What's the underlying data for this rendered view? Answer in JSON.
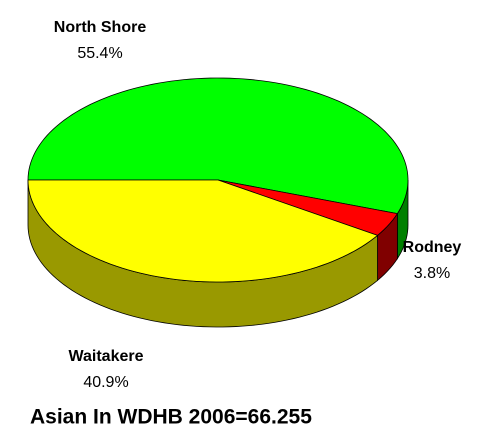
{
  "chart_data": {
    "type": "pie",
    "title": "Asian In WDHB 2006=66.255",
    "categories": [
      "North Shore",
      "Rodney",
      "Waitakere"
    ],
    "values": [
      55.4,
      3.8,
      40.9
    ],
    "value_labels": [
      "55.4%",
      "3.8%",
      "40.9%"
    ],
    "colors": [
      "#00ff00",
      "#ff0000",
      "#ffff00"
    ],
    "side_colors": [
      "#008000",
      "#800000",
      "#999900"
    ]
  }
}
